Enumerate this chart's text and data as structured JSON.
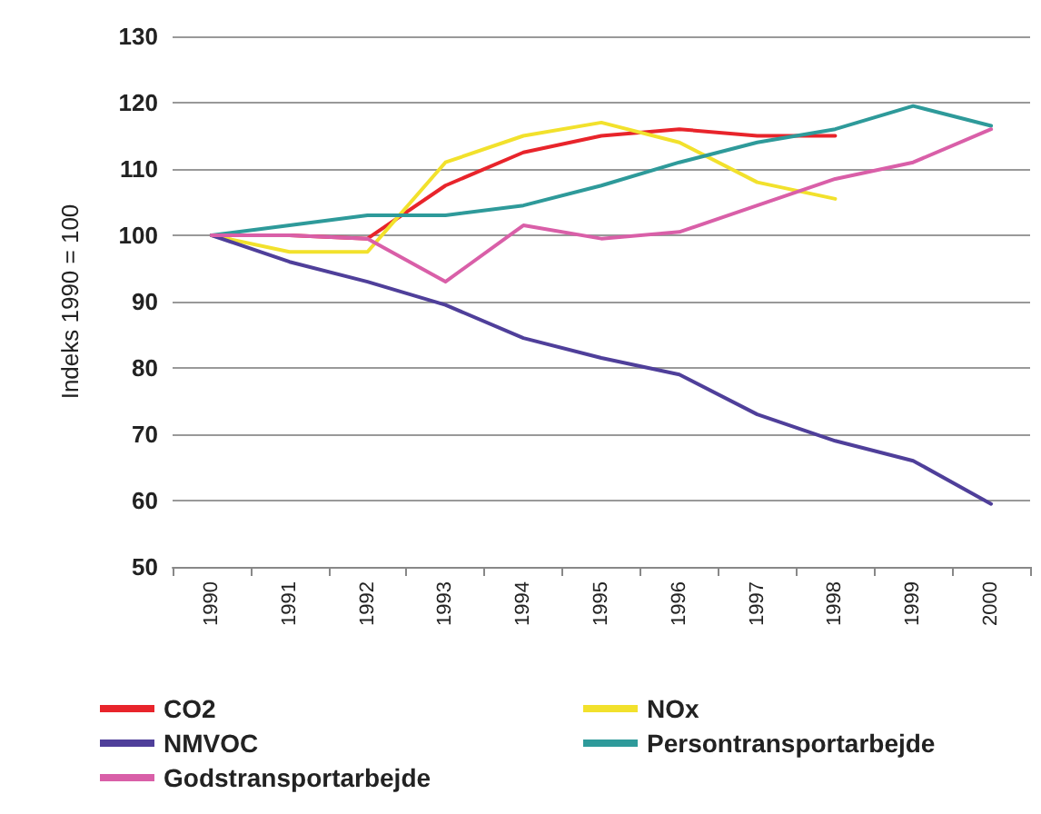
{
  "chart_data": {
    "type": "line",
    "ylabel": "Indeks 1990 = 100",
    "categories": [
      "1990",
      "1991",
      "1992",
      "1993",
      "1994",
      "1995",
      "1996",
      "1997",
      "1998",
      "1999",
      "2000"
    ],
    "series": [
      {
        "name": "CO2",
        "color": "#e8242b",
        "values": [
          100,
          100,
          99.5,
          107.5,
          112.5,
          115,
          116,
          115,
          115,
          null,
          null
        ]
      },
      {
        "name": "NOx",
        "color": "#f2e12c",
        "values": [
          100,
          97.5,
          97.5,
          111,
          115,
          117,
          114,
          108,
          105.5,
          null,
          null
        ]
      },
      {
        "name": "NMVOC",
        "color": "#4f3f9a",
        "values": [
          100,
          96,
          93,
          89.5,
          84.5,
          81.5,
          79,
          73,
          69,
          66,
          59.5
        ]
      },
      {
        "name": "Persontransportarbejde",
        "color": "#2e9a9a",
        "values": [
          100,
          101.5,
          103,
          103,
          104.5,
          107.5,
          111,
          114,
          116,
          119.5,
          116.5
        ]
      },
      {
        "name": "Godstransportarbejde",
        "color": "#d95fa8",
        "values": [
          100,
          100,
          99.5,
          93,
          101.5,
          99.5,
          100.5,
          104.5,
          108.5,
          111,
          116
        ]
      }
    ],
    "ylim": [
      50,
      130
    ],
    "yticks": [
      50,
      60,
      70,
      80,
      90,
      100,
      110,
      120,
      130
    ],
    "grid": "y",
    "legend": "bottom",
    "marker": "none",
    "line_style": "solid"
  }
}
